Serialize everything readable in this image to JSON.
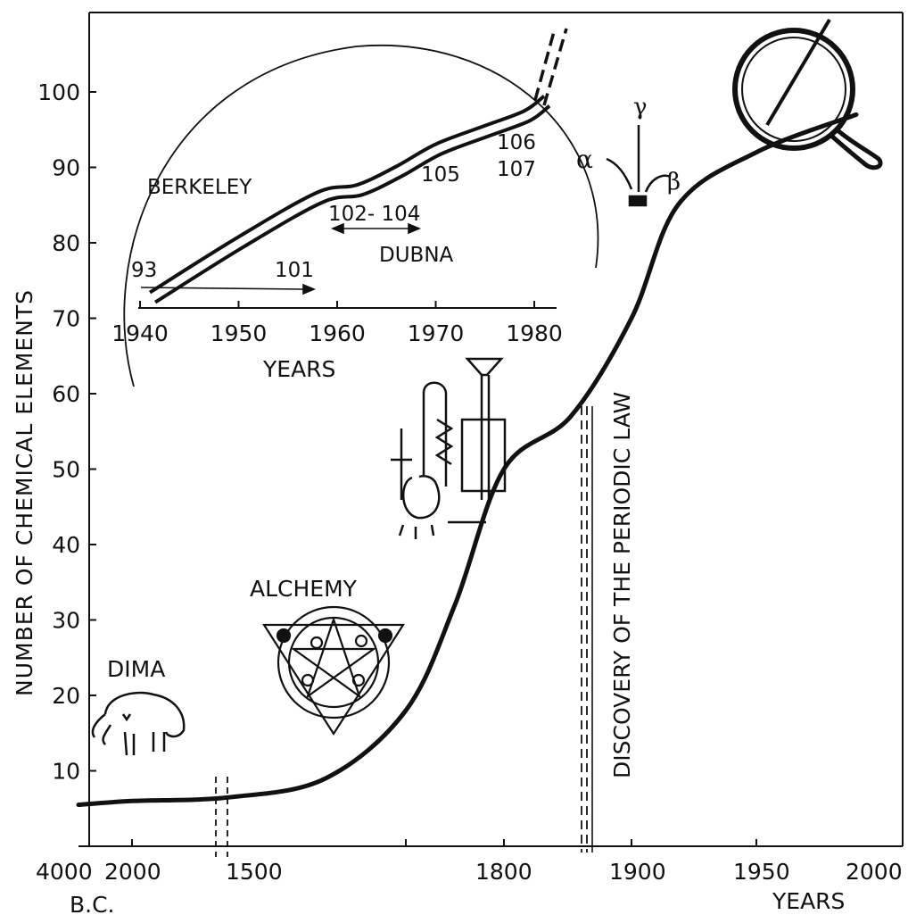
{
  "chart_data": [
    {
      "id": "main",
      "type": "line",
      "title": "",
      "ylabel": "NUMBER OF CHEMICAL ELEMENTS",
      "xlabel": "YEARS",
      "x_tick_labels": [
        "4000",
        "2000",
        "1500",
        "1800",
        "1900",
        "1950",
        "2000"
      ],
      "x_sub_label": "B.C.",
      "y_ticks": [
        10,
        20,
        30,
        40,
        50,
        60,
        70,
        80,
        90,
        100
      ],
      "ylim": [
        0,
        108
      ],
      "axis_break_between": [
        "2000 B.C.",
        "1500"
      ],
      "annotations": [
        "DIMA",
        "ALCHEMY",
        "DISCOVERY OF THE PERIODIC LAW"
      ],
      "series": [
        {
          "values": [
            {
              "x": "4000 B.C.",
              "y": 5.5
            },
            {
              "x": "2000 B.C.",
              "y": 6
            },
            {
              "x": "1500",
              "y": 6.5
            },
            {
              "x": "1600",
              "y": 9
            },
            {
              "x": "1700",
              "y": 18
            },
            {
              "x": "1750",
              "y": 32
            },
            {
              "x": "1800",
              "y": 50
            },
            {
              "x": "1850",
              "y": 57
            },
            {
              "x": "1900",
              "y": 70
            },
            {
              "x": "1920",
              "y": 85
            },
            {
              "x": "1950",
              "y": 92
            },
            {
              "x": "1980",
              "y": 97
            }
          ]
        }
      ]
    },
    {
      "id": "inset",
      "type": "line",
      "title": "",
      "xlabel": "YEARS",
      "x_ticks": [
        1940,
        1950,
        1960,
        1970,
        1980
      ],
      "xlim": [
        1940,
        1982
      ],
      "ylim": [
        70,
        100
      ],
      "annotations": [
        "BERKELEY",
        "DUBNA",
        "93",
        "101",
        "102- 104",
        "105",
        "106",
        "107"
      ],
      "series": [
        {
          "values": [
            {
              "x": 1941,
              "y": 71.5
            },
            {
              "x": 1950,
              "y": 79
            },
            {
              "x": 1958,
              "y": 85
            },
            {
              "x": 1962,
              "y": 86
            },
            {
              "x": 1966,
              "y": 88.5
            },
            {
              "x": 1970,
              "y": 91.5
            },
            {
              "x": 1975,
              "y": 94
            },
            {
              "x": 1979,
              "y": 96
            },
            {
              "x": 1981,
              "y": 98
            }
          ]
        }
      ]
    }
  ]
}
